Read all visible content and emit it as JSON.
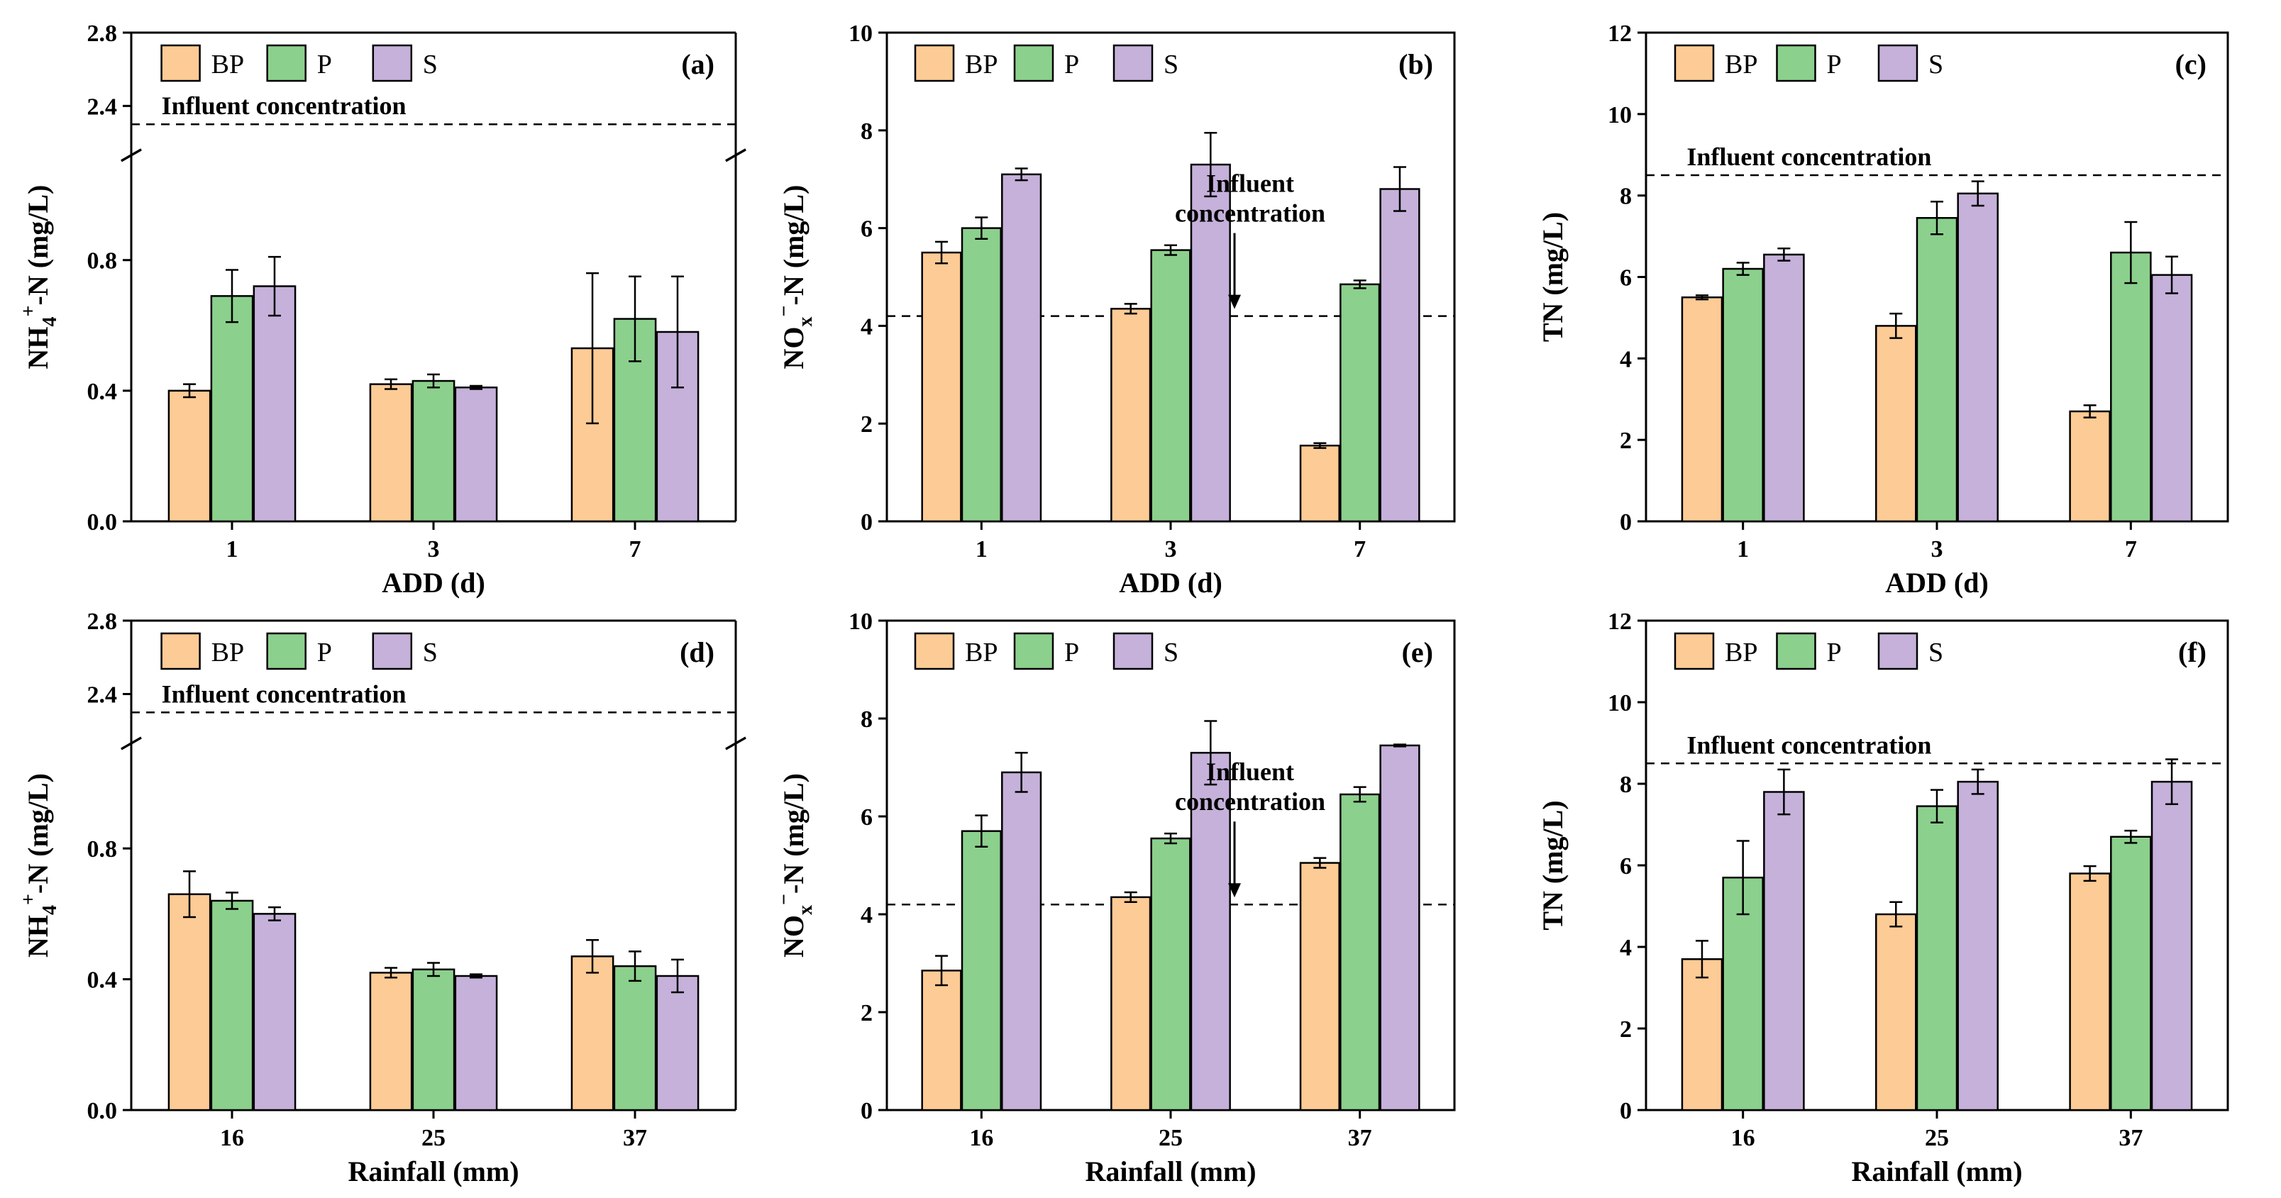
{
  "colors": {
    "BP": "#FDCB95",
    "P": "#8CD08D",
    "S": "#C5B1DA",
    "axis": "#000000"
  },
  "chart_data": [
    {
      "type": "bar",
      "panel_label": "(a)",
      "xlabel": "ADD (d)",
      "ylabel_parts": [
        "NH",
        "4",
        "+",
        "-N (mg/L)"
      ],
      "categories": [
        "1",
        "3",
        "7"
      ],
      "legend": [
        "BP",
        "P",
        "S"
      ],
      "series": [
        {
          "name": "BP",
          "values": [
            0.4,
            0.42,
            0.53
          ],
          "errors": [
            0.02,
            0.015,
            0.23
          ]
        },
        {
          "name": "P",
          "values": [
            0.69,
            0.43,
            0.62
          ],
          "errors": [
            0.08,
            0.02,
            0.13
          ]
        },
        {
          "name": "S",
          "values": [
            0.72,
            0.41,
            0.58
          ],
          "errors": [
            0.09,
            0.005,
            0.17
          ]
        }
      ],
      "axis_break": true,
      "lower_range": [
        0,
        1.1
      ],
      "upper_range": [
        2.2,
        2.8
      ],
      "yticks_lower": [
        0.0,
        0.4,
        0.8
      ],
      "yticks_upper": [
        2.4,
        2.8
      ],
      "tick_labels_lower": [
        "0.0",
        "0.4",
        "0.8"
      ],
      "tick_labels_upper": [
        "2.4",
        "2.8"
      ],
      "reference_value": 2.3,
      "annotation": {
        "text": "Influent concentration",
        "lines": [
          "Influent concentration"
        ],
        "arrow": false
      }
    },
    {
      "type": "bar",
      "panel_label": "(b)",
      "xlabel": "ADD (d)",
      "ylabel_parts": [
        "NO",
        "x",
        "−",
        "-N (mg/L)"
      ],
      "categories": [
        "1",
        "3",
        "7"
      ],
      "legend": [
        "BP",
        "P",
        "S"
      ],
      "series": [
        {
          "name": "BP",
          "values": [
            5.5,
            4.35,
            1.55
          ],
          "errors": [
            0.22,
            0.1,
            0.05
          ]
        },
        {
          "name": "P",
          "values": [
            6.0,
            5.55,
            4.85
          ],
          "errors": [
            0.22,
            0.1,
            0.08
          ]
        },
        {
          "name": "S",
          "values": [
            7.1,
            7.3,
            6.8
          ],
          "errors": [
            0.12,
            0.65,
            0.45
          ]
        }
      ],
      "ylim": [
        0,
        10
      ],
      "yticks": [
        0,
        2,
        4,
        6,
        8,
        10
      ],
      "tick_labels": [
        "0",
        "2",
        "4",
        "6",
        "8",
        "10"
      ],
      "reference_value": 4.2,
      "annotation": {
        "text": "Influent concentration",
        "lines": [
          "Influent",
          "concentration"
        ],
        "arrow": true
      }
    },
    {
      "type": "bar",
      "panel_label": "(c)",
      "xlabel": "ADD (d)",
      "ylabel_parts": [
        "TN (mg/L)"
      ],
      "categories": [
        "1",
        "3",
        "7"
      ],
      "legend": [
        "BP",
        "P",
        "S"
      ],
      "series": [
        {
          "name": "BP",
          "values": [
            5.5,
            4.8,
            2.7
          ],
          "errors": [
            0.05,
            0.3,
            0.15
          ]
        },
        {
          "name": "P",
          "values": [
            6.2,
            7.45,
            6.6
          ],
          "errors": [
            0.15,
            0.4,
            0.75
          ]
        },
        {
          "name": "S",
          "values": [
            6.55,
            8.05,
            6.05
          ],
          "errors": [
            0.15,
            0.3,
            0.45
          ]
        }
      ],
      "ylim": [
        0,
        12
      ],
      "yticks": [
        0,
        2,
        4,
        6,
        8,
        10,
        12
      ],
      "tick_labels": [
        "0",
        "2",
        "4",
        "6",
        "8",
        "10",
        "12"
      ],
      "reference_value": 8.5,
      "annotation": {
        "text": "Influent concentration",
        "lines": [
          "Influent concentration"
        ],
        "arrow": false
      }
    },
    {
      "type": "bar",
      "panel_label": "(d)",
      "xlabel": "Rainfall (mm)",
      "ylabel_parts": [
        "NH",
        "4",
        "+",
        "-N (mg/L)"
      ],
      "categories": [
        "16",
        "25",
        "37"
      ],
      "legend": [
        "BP",
        "P",
        "S"
      ],
      "series": [
        {
          "name": "BP",
          "values": [
            0.66,
            0.42,
            0.47
          ],
          "errors": [
            0.07,
            0.015,
            0.05
          ]
        },
        {
          "name": "P",
          "values": [
            0.64,
            0.43,
            0.44
          ],
          "errors": [
            0.025,
            0.02,
            0.045
          ]
        },
        {
          "name": "S",
          "values": [
            0.6,
            0.41,
            0.41
          ],
          "errors": [
            0.02,
            0.005,
            0.05
          ]
        }
      ],
      "axis_break": true,
      "lower_range": [
        0,
        1.1
      ],
      "upper_range": [
        2.2,
        2.8
      ],
      "yticks_lower": [
        0.0,
        0.4,
        0.8
      ],
      "yticks_upper": [
        2.4,
        2.8
      ],
      "tick_labels_lower": [
        "0.0",
        "0.4",
        "0.8"
      ],
      "tick_labels_upper": [
        "2.4",
        "2.8"
      ],
      "reference_value": 2.3,
      "annotation": {
        "text": "Influent concentration",
        "lines": [
          "Influent concentration"
        ],
        "arrow": false
      }
    },
    {
      "type": "bar",
      "panel_label": "(e)",
      "xlabel": "Rainfall (mm)",
      "ylabel_parts": [
        "NO",
        "x",
        "−",
        "-N (mg/L)"
      ],
      "categories": [
        "16",
        "25",
        "37"
      ],
      "legend": [
        "BP",
        "P",
        "S"
      ],
      "series": [
        {
          "name": "BP",
          "values": [
            2.85,
            4.35,
            5.05
          ],
          "errors": [
            0.3,
            0.1,
            0.1
          ]
        },
        {
          "name": "P",
          "values": [
            5.7,
            5.55,
            6.45
          ],
          "errors": [
            0.32,
            0.1,
            0.15
          ]
        },
        {
          "name": "S",
          "values": [
            6.9,
            7.3,
            7.45
          ],
          "errors": [
            0.4,
            0.65,
            0.02
          ]
        }
      ],
      "ylim": [
        0,
        10
      ],
      "yticks": [
        0,
        2,
        4,
        6,
        8,
        10
      ],
      "tick_labels": [
        "0",
        "2",
        "4",
        "6",
        "8",
        "10"
      ],
      "reference_value": 4.2,
      "annotation": {
        "text": "Influent concentration",
        "lines": [
          "Influent",
          "concentration"
        ],
        "arrow": true
      }
    },
    {
      "type": "bar",
      "panel_label": "(f)",
      "xlabel": "Rainfall (mm)",
      "ylabel_parts": [
        "TN (mg/L)"
      ],
      "categories": [
        "16",
        "25",
        "37"
      ],
      "legend": [
        "BP",
        "P",
        "S"
      ],
      "series": [
        {
          "name": "BP",
          "values": [
            3.7,
            4.8,
            5.8
          ],
          "errors": [
            0.45,
            0.3,
            0.18
          ]
        },
        {
          "name": "P",
          "values": [
            5.7,
            7.45,
            6.7
          ],
          "errors": [
            0.9,
            0.4,
            0.15
          ]
        },
        {
          "name": "S",
          "values": [
            7.8,
            8.05,
            8.05
          ],
          "errors": [
            0.55,
            0.3,
            0.55
          ]
        }
      ],
      "ylim": [
        0,
        12
      ],
      "yticks": [
        0,
        2,
        4,
        6,
        8,
        10,
        12
      ],
      "tick_labels": [
        "0",
        "2",
        "4",
        "6",
        "8",
        "10",
        "12"
      ],
      "reference_value": 8.5,
      "annotation": {
        "text": "Influent concentration",
        "lines": [
          "Influent concentration"
        ],
        "arrow": false
      }
    }
  ]
}
